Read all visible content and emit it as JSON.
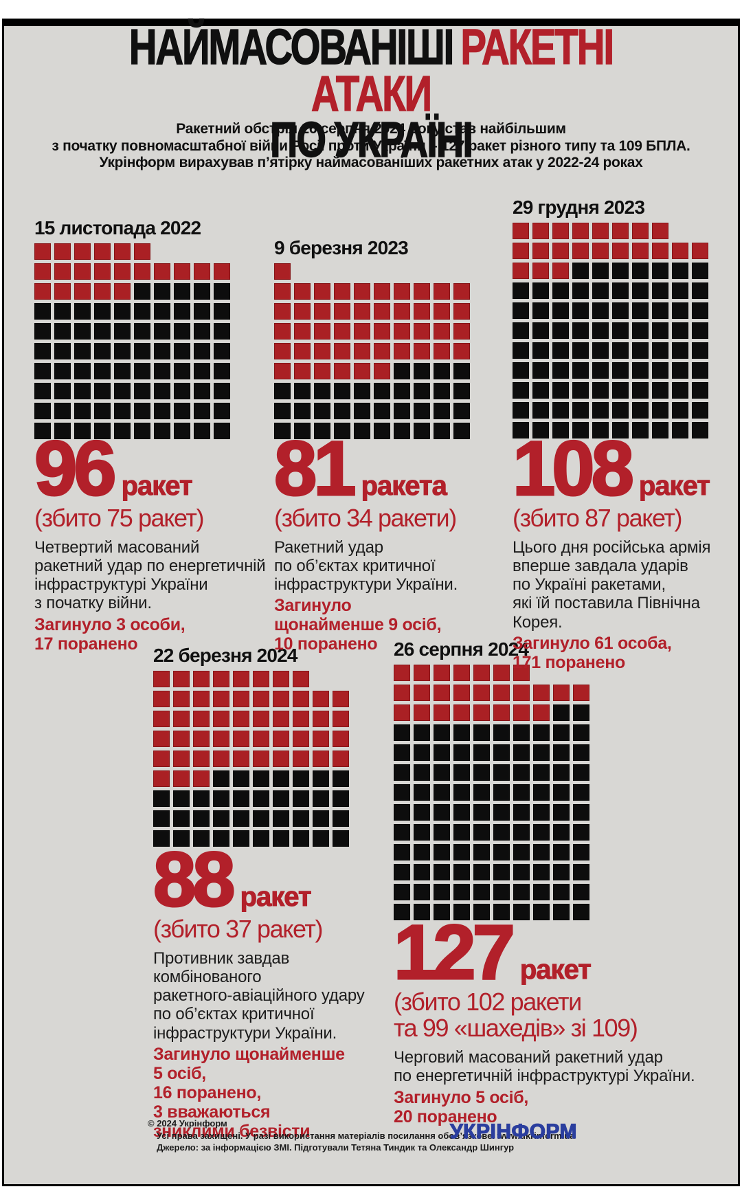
{
  "colors": {
    "background": "#d8d7d4",
    "red_square": "#aa2024",
    "black_square": "#0d0d0d",
    "red_text": "#b2202a",
    "title_black": "#101010",
    "logo_blue": "#2b3e9e"
  },
  "title": {
    "black1": "НАЙМАСОВАНІШІ",
    "red": "РАКЕТНІ АТАКИ",
    "line2": "ПО УКРАЇНІ"
  },
  "subtitle": {
    "lines": [
      "Ракетний обстріл 26 серпня 2024 року став найбільшим",
      "з початку повномасштабної війни Росії проти України – 127 ракет різного типу та 109 БПЛА.",
      "Укрінформ вирахував п’ятірку наймасованіших ракетних атак у 2022-24 роках"
    ]
  },
  "chart_data": [
    {
      "type": "waffle",
      "date": "15 листопада 2022",
      "total": 96,
      "shot_down": 75,
      "red_squares": 21,
      "black_squares": 75,
      "columns": 10,
      "first_row": 6,
      "number_label": "96",
      "unit_label": "ракет",
      "intercepted_label": "(збито 75 ракет)",
      "description": "Четвертий масований\nракетний удар по енергетичній\nінфраструктурі України\nз початку війни.",
      "casualties": "Загинуло 3 особи,\n17 поранено"
    },
    {
      "type": "waffle",
      "date": "9 березня 2023",
      "total": 81,
      "shot_down": 34,
      "red_squares": 47,
      "black_squares": 34,
      "columns": 10,
      "first_row": 1,
      "number_label": "81",
      "unit_label": "ракета",
      "intercepted_label": "(збито 34 ракети)",
      "description": "Ракетний удар\nпо об’єктах критичної\nінфраструктури України.",
      "casualties": "Загинуло\nщонайменше 9 осіб,\n10 поранено"
    },
    {
      "type": "waffle",
      "date": "29 грудня 2023",
      "total": 108,
      "shot_down": 87,
      "red_squares": 21,
      "black_squares": 87,
      "columns": 10,
      "first_row": 8,
      "number_label": "108",
      "unit_label": "ракет",
      "intercepted_label": "(збито 87 ракет)",
      "description": "Цього дня російська армія\nвперше завдала ударів\nпо Україні ракетами,\nякі їй поставила Північна Корея.",
      "casualties": "Загинуло 61 особа,\n171 поранено"
    },
    {
      "type": "waffle",
      "date": "22 березня 2024",
      "total": 88,
      "shot_down": 37,
      "red_squares": 51,
      "black_squares": 37,
      "columns": 10,
      "first_row": 8,
      "number_label": "88",
      "unit_label": "ракет",
      "intercepted_label": "(збито 37 ракет)",
      "description": "Противник завдав\nкомбінованого\nракетного-авіаційного удару\nпо об’єктах критичної\nінфраструктури України.",
      "casualties": "Загинуло щонайменше\n5 осіб,\n16 поранено,\n3 вважаються\nзниклими безвісти"
    },
    {
      "type": "waffle",
      "date": "26 серпня 2024",
      "total": 127,
      "shot_down": 102,
      "red_squares": 25,
      "black_squares": 102,
      "columns": 10,
      "first_row": 7,
      "number_label": "127",
      "unit_label": "ракет",
      "intercepted_label": "(збито 102 ракети\nта 99 «шахедів» зі 109)",
      "description": "Черговий масований ракетний удар\nпо енергетичній інфраструктурі України.",
      "casualties": "Загинуло 5 осіб,\n20 поранено"
    }
  ],
  "footer": {
    "copyright": "© 2024 Укрінформ",
    "rights": "Усі права захищені. У разі використання матеріалів посилання обов’язкове. www.ukrinform.ua",
    "source": "Джерело: за інформацією ЗМІ. Підготували Тетяна Тиндик та Олександр Шингур",
    "logo": "УКРІНФОРМ"
  }
}
